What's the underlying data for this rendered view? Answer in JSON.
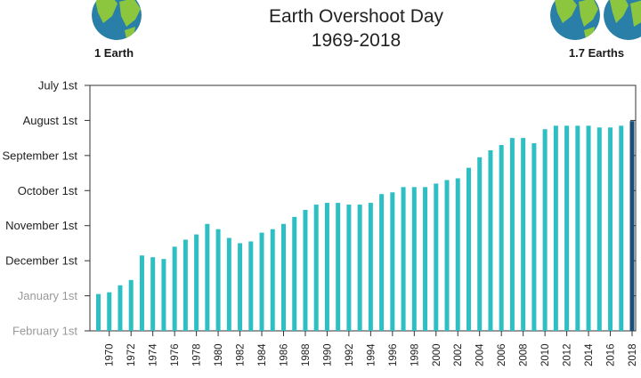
{
  "chart_data": {
    "type": "bar",
    "title": "Earth Overshoot Day",
    "subtitle": "1969-2018",
    "y_tick_labels": [
      "July 1st",
      "August 1st",
      "September 1st",
      "October 1st",
      "November 1st",
      "December 1st",
      "January 1st",
      "February 1st"
    ],
    "y_tick_colors": [
      "#222222",
      "#222222",
      "#222222",
      "#222222",
      "#222222",
      "#222222",
      "#999999",
      "#999999"
    ],
    "x_tick_labels": [
      "1970",
      "1972",
      "1974",
      "1976",
      "1978",
      "1980",
      "1982",
      "1984",
      "1986",
      "1988",
      "1990",
      "1992",
      "1994",
      "1996",
      "1998",
      "2000",
      "2002",
      "2004",
      "2006",
      "2008",
      "2010",
      "2012",
      "2014",
      "2016",
      "2018"
    ],
    "years": [
      1969,
      1970,
      1971,
      1972,
      1973,
      1974,
      1975,
      1976,
      1977,
      1978,
      1979,
      1980,
      1981,
      1982,
      1983,
      1984,
      1985,
      1986,
      1987,
      1988,
      1989,
      1990,
      1991,
      1992,
      1993,
      1994,
      1995,
      1996,
      1997,
      1998,
      1999,
      2000,
      2001,
      2002,
      2003,
      2004,
      2005,
      2006,
      2007,
      2008,
      2009,
      2010,
      2011,
      2012,
      2013,
      2014,
      2015,
      2016,
      2017,
      2018
    ],
    "overshoot_months_before_feb1": [
      1.05,
      1.1,
      1.3,
      1.45,
      2.15,
      2.1,
      2.05,
      2.4,
      2.6,
      2.75,
      3.05,
      2.9,
      2.65,
      2.5,
      2.55,
      2.8,
      2.9,
      3.05,
      3.25,
      3.45,
      3.6,
      3.65,
      3.65,
      3.6,
      3.6,
      3.65,
      3.9,
      3.95,
      4.1,
      4.1,
      4.1,
      4.2,
      4.3,
      4.35,
      4.65,
      4.95,
      5.15,
      5.3,
      5.5,
      5.5,
      5.35,
      5.75,
      5.85,
      5.85,
      5.85,
      5.85,
      5.8,
      5.8,
      5.85,
      5.98
    ],
    "ylim": [
      0,
      7
    ],
    "bar_color": "#2ebfc4",
    "highlight_bar_color": "#1a4f7a",
    "highlight_year": 2018,
    "grid": false
  },
  "icons": {
    "left_globe": "earth-globe-icon",
    "right_globes": "two-earth-globes-icon"
  },
  "earth_labels": {
    "left": "1 Earth",
    "right": "1.7 Earths"
  },
  "colors": {
    "ocean": "#2a7fa8",
    "land": "#8cc63f"
  }
}
